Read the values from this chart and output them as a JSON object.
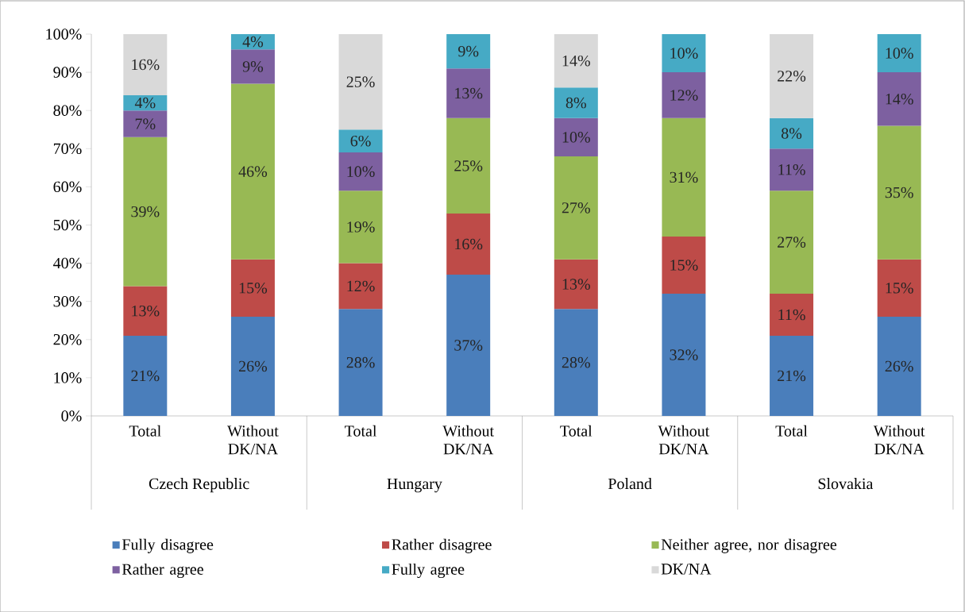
{
  "chart_data": {
    "type": "bar",
    "stacked": true,
    "legend": "bottom",
    "categories": [
      "Total",
      "Without DK/NA",
      "Total",
      "Without DK/NA",
      "Total",
      "Without DK/NA",
      "Total",
      "Without DK/NA"
    ],
    "annotations": [
      "Czech Republic",
      "Hungary",
      "Poland",
      "Slovakia"
    ],
    "ylim": [
      0,
      100
    ],
    "yticks": [
      {
        "value": 0,
        "label": "0%"
      },
      {
        "value": 10,
        "label": "10%"
      },
      {
        "value": 20,
        "label": "20%"
      },
      {
        "value": 30,
        "label": "30%"
      },
      {
        "value": 40,
        "label": "40%"
      },
      {
        "value": 50,
        "label": "50%"
      },
      {
        "value": 60,
        "label": "60%"
      },
      {
        "value": 70,
        "label": "70%"
      },
      {
        "value": 80,
        "label": "80%"
      },
      {
        "value": 90,
        "label": "90%"
      },
      {
        "value": 100,
        "label": "100%"
      }
    ],
    "series": [
      {
        "name": "Fully disagree",
        "color": "#4a7ebb",
        "values": [
          21,
          26,
          28,
          37,
          28,
          32,
          21,
          26
        ],
        "value_labels": [
          "21%",
          "26%",
          "28%",
          "37%",
          "28%",
          "32%",
          "21%",
          "26%"
        ]
      },
      {
        "name": "Rather disagree",
        "color": "#be4b48",
        "values": [
          13,
          15,
          12,
          16,
          13,
          15,
          11,
          15
        ],
        "value_labels": [
          "13%",
          "15%",
          "12%",
          "16%",
          "13%",
          "15%",
          "11%",
          "15%"
        ]
      },
      {
        "name": "Neither agree, nor disagree",
        "color": "#98b954",
        "values": [
          39,
          46,
          19,
          25,
          27,
          31,
          27,
          35
        ],
        "value_labels": [
          "39%",
          "46%",
          "19%",
          "25%",
          "27%",
          "31%",
          "27%",
          "35%"
        ]
      },
      {
        "name": "Rather agree",
        "color": "#7d60a0",
        "values": [
          7,
          9,
          10,
          13,
          10,
          12,
          11,
          14
        ],
        "value_labels": [
          "7%",
          "9%",
          "10%",
          "13%",
          "10%",
          "12%",
          "11%",
          "14%"
        ]
      },
      {
        "name": "Fully agree",
        "color": "#46aac5",
        "values": [
          4,
          4,
          6,
          9,
          8,
          10,
          8,
          10
        ],
        "value_labels": [
          "4%",
          "4%",
          "6%",
          "9%",
          "8%",
          "10%",
          "8%",
          "10%"
        ]
      },
      {
        "name": "DK/NA",
        "color": "#d9d9d9",
        "values": [
          16,
          null,
          25,
          null,
          14,
          null,
          22,
          null
        ],
        "value_labels": [
          "16%",
          null,
          "25%",
          null,
          "14%",
          null,
          "22%",
          null
        ]
      }
    ]
  }
}
